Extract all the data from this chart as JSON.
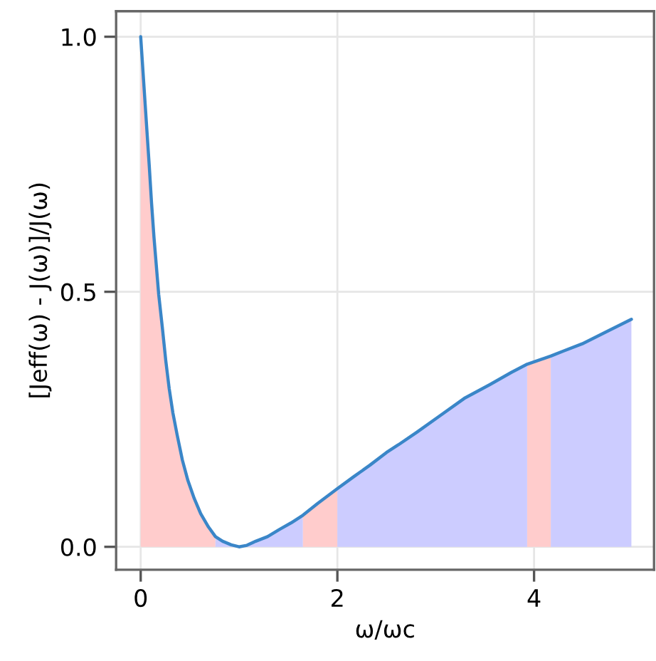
{
  "chart_data": {
    "type": "line",
    "xlabel": "ω/ωc",
    "ylabel": "[Jeff(ω) - J(ω)]/J(ω)",
    "x": [
      0,
      0.039,
      0.087,
      0.11,
      0.135,
      0.183,
      0.22,
      0.255,
      0.29,
      0.327,
      0.37,
      0.424,
      0.48,
      0.544,
      0.61,
      0.689,
      0.76,
      0.833,
      0.92,
      1.0,
      1.08,
      1.17,
      1.29,
      1.41,
      1.53,
      1.65,
      1.8,
      2.0,
      2.17,
      2.33,
      2.5,
      2.62,
      2.81,
      3.05,
      3.29,
      3.55,
      3.77,
      3.93,
      4.17,
      4.3,
      4.49,
      4.75,
      4.99
    ],
    "series": [
      {
        "type": "area",
        "color": "#ffcccc",
        "x": [
          0,
          0.039,
          0.087,
          0.11,
          0.135,
          0.183,
          0.22,
          0.255,
          0.29,
          0.327,
          0.37,
          0.424,
          0.48,
          0.544,
          0.61,
          0.689,
          0.76
        ],
        "values": [
          1.0,
          0.886,
          0.747,
          0.675,
          0.607,
          0.495,
          0.43,
          0.365,
          0.31,
          0.263,
          0.22,
          0.17,
          0.13,
          0.095,
          0.065,
          0.039,
          0.02
        ]
      },
      {
        "type": "area",
        "color": "#ccccff",
        "x": [
          0.76,
          0.833,
          0.92,
          1.0,
          1.08,
          1.17,
          1.29,
          1.41,
          1.53,
          1.65
        ],
        "values": [
          0.02,
          0.011,
          0.004,
          0.0,
          0.003,
          0.011,
          0.02,
          0.034,
          0.047,
          0.062
        ]
      },
      {
        "type": "area",
        "color": "#ffcccc",
        "x": [
          1.65,
          1.8,
          2.0
        ],
        "values": [
          0.062,
          0.085,
          0.114
        ]
      },
      {
        "type": "area",
        "color": "#ccccff",
        "x": [
          2.0,
          2.17,
          2.33,
          2.5,
          2.62,
          2.81,
          3.05,
          3.29,
          3.55,
          3.77,
          3.93
        ],
        "values": [
          0.114,
          0.138,
          0.16,
          0.185,
          0.2,
          0.225,
          0.258,
          0.291,
          0.318,
          0.342,
          0.358
        ]
      },
      {
        "type": "area",
        "color": "#ffcccc",
        "x": [
          3.93,
          4.17
        ],
        "values": [
          0.358,
          0.374
        ]
      },
      {
        "type": "area",
        "color": "#ccccff",
        "x": [
          4.17,
          4.3,
          4.49,
          4.75,
          4.99
        ],
        "values": [
          0.374,
          0.384,
          0.398,
          0.423,
          0.446
        ]
      },
      {
        "color": "#3a86c8",
        "values": [
          1.0,
          0.886,
          0.747,
          0.675,
          0.607,
          0.495,
          0.43,
          0.365,
          0.31,
          0.263,
          0.22,
          0.17,
          0.13,
          0.095,
          0.065,
          0.039,
          0.02,
          0.011,
          0.004,
          0.0,
          0.003,
          0.011,
          0.02,
          0.034,
          0.047,
          0.062,
          0.085,
          0.114,
          0.138,
          0.16,
          0.185,
          0.2,
          0.225,
          0.258,
          0.291,
          0.318,
          0.342,
          0.358,
          0.374,
          0.384,
          0.398,
          0.423,
          0.446
        ]
      }
    ],
    "xlim": [
      -0.25,
      5.22
    ],
    "ylim": [
      -0.045,
      1.05
    ],
    "xticks": [
      0,
      2,
      4
    ],
    "yticks": [
      {
        "value": 0,
        "label": "0.0"
      },
      {
        "value": 0.5,
        "label": "0.5"
      },
      {
        "value": 1,
        "label": "1.0"
      }
    ],
    "grid": true,
    "legend": false
  }
}
